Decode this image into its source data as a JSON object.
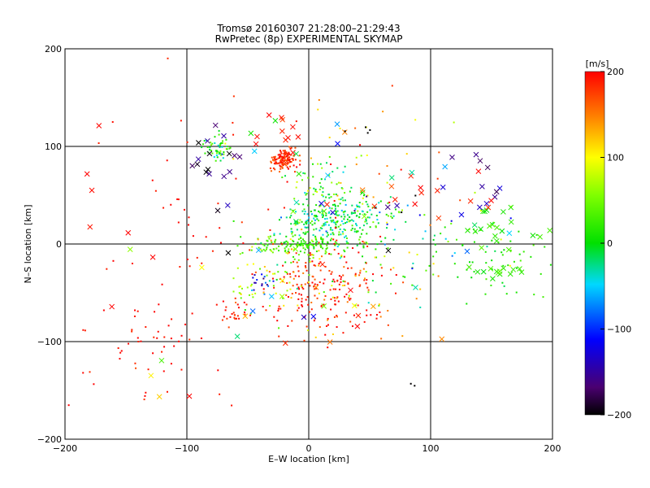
{
  "chart_data": {
    "type": "scatter",
    "title": "Tromsø 20160307 21:28:00–21:29:43",
    "subtitle": "RwPretec (8p) EXPERIMENTAL SKYMAP",
    "xlabel": "E–W location [km]",
    "ylabel": "N–S location [km]",
    "xlim": [
      -200,
      200
    ],
    "ylim": [
      -200,
      200
    ],
    "xticks": [
      -200,
      -100,
      0,
      100,
      200
    ],
    "yticks": [
      -200,
      -100,
      0,
      100,
      200
    ],
    "grid": "major lines at -100, 0, 100",
    "colorbar": {
      "label": "[m/s]",
      "range": [
        -200,
        200
      ],
      "ticks": [
        200,
        100,
        0,
        -100,
        -200
      ],
      "colormap": "black-purple-blue-cyan-green-yellow-red"
    },
    "clusters": [
      {
        "cx": -20,
        "cy": 87,
        "sx": 6,
        "sy": 5,
        "n": 130,
        "v": 185,
        "vs": 15,
        "marker": "dot"
      },
      {
        "cx": -75,
        "cy": 97,
        "sx": 6,
        "sy": 6,
        "n": 55,
        "v": 5,
        "vs": 40,
        "marker": "dot"
      },
      {
        "cx": -5,
        "cy": 0,
        "sx": 22,
        "sy": 5,
        "n": 150,
        "v": 25,
        "vs": 15,
        "marker": "dot"
      },
      {
        "cx": 15,
        "cy": 25,
        "sx": 18,
        "sy": 10,
        "n": 150,
        "v": -20,
        "vs": 25,
        "marker": "dot"
      },
      {
        "cx": 10,
        "cy": 45,
        "sx": 14,
        "sy": 22,
        "n": 90,
        "v": 10,
        "vs": 40,
        "marker": "dot"
      },
      {
        "cx": 40,
        "cy": 22,
        "sx": 20,
        "sy": 14,
        "n": 80,
        "v": 10,
        "vs": 30,
        "marker": "dot"
      },
      {
        "cx": 10,
        "cy": -45,
        "sx": 25,
        "sy": 25,
        "n": 180,
        "v": 190,
        "vs": 15,
        "marker": "dot"
      },
      {
        "cx": -20,
        "cy": -30,
        "sx": 18,
        "sy": 25,
        "n": 70,
        "v": 70,
        "vs": 50,
        "marker": "dot"
      },
      {
        "cx": 40,
        "cy": -40,
        "sx": 30,
        "sy": 25,
        "n": 50,
        "v": 120,
        "vs": 60,
        "marker": "dot"
      },
      {
        "cx": -60,
        "cy": -70,
        "sx": 8,
        "sy": 6,
        "n": 25,
        "v": 190,
        "vs": 15,
        "marker": "dot"
      },
      {
        "cx": -40,
        "cy": -40,
        "sx": 6,
        "sy": 6,
        "n": 18,
        "v": -110,
        "vs": 30,
        "marker": "dot"
      },
      {
        "cx": -55,
        "cy": -50,
        "sx": 6,
        "sy": 4,
        "n": 12,
        "v": 80,
        "vs": 20,
        "marker": "dot"
      },
      {
        "cx": -130,
        "cy": -95,
        "sx": 35,
        "sy": 30,
        "n": 60,
        "v": 195,
        "vs": 8,
        "marker": "dot"
      },
      {
        "cx": -80,
        "cy": 40,
        "sx": 45,
        "sy": 50,
        "n": 40,
        "v": 195,
        "vs": 8,
        "marker": "dot"
      },
      {
        "cx": 40,
        "cy": 90,
        "sx": 30,
        "sy": 30,
        "n": 30,
        "v": 130,
        "vs": 70,
        "marker": "dot"
      },
      {
        "cx": 85,
        "cy": 30,
        "sx": 30,
        "sy": 20,
        "n": 30,
        "v": -50,
        "vs": 80,
        "marker": "dot"
      },
      {
        "cx": 150,
        "cy": -15,
        "sx": 30,
        "sy": 20,
        "n": 60,
        "v": 15,
        "vs": 15,
        "marker": "dot"
      },
      {
        "cx": 60,
        "cy": -10,
        "sx": 40,
        "sy": 40,
        "n": 40,
        "v": 60,
        "vs": 100,
        "marker": "dot"
      },
      {
        "cx": 160,
        "cy": -28,
        "sx": 14,
        "sy": 3,
        "n": 14,
        "v": 15,
        "vs": 10,
        "marker": "x"
      },
      {
        "cx": 160,
        "cy": 18,
        "sx": 22,
        "sy": 12,
        "n": 22,
        "v": 15,
        "vs": 15,
        "marker": "x"
      },
      {
        "cx": 140,
        "cy": 75,
        "sx": 15,
        "sy": 20,
        "n": 10,
        "v": -150,
        "vs": 30,
        "marker": "x"
      },
      {
        "cx": 100,
        "cy": 45,
        "sx": 30,
        "sy": 15,
        "n": 14,
        "v": 190,
        "vs": 10,
        "marker": "x"
      },
      {
        "cx": -75,
        "cy": 85,
        "sx": 10,
        "sy": 20,
        "n": 18,
        "v": -180,
        "vs": 30,
        "marker": "x"
      },
      {
        "cx": -20,
        "cy": 120,
        "sx": 15,
        "sy": 20,
        "n": 12,
        "v": 190,
        "vs": 10,
        "marker": "x"
      },
      {
        "cx": -130,
        "cy": -70,
        "sx": 40,
        "sy": 60,
        "n": 10,
        "v": 170,
        "vs": 60,
        "marker": "x"
      },
      {
        "cx": -180,
        "cy": 70,
        "sx": 10,
        "sy": 20,
        "n": 4,
        "v": 190,
        "vs": 10,
        "marker": "x"
      },
      {
        "cx": -20,
        "cy": -60,
        "sx": 25,
        "sy": 45,
        "n": 14,
        "v": 50,
        "vs": 120,
        "marker": "x"
      },
      {
        "cx": 60,
        "cy": 40,
        "sx": 50,
        "sy": 40,
        "n": 14,
        "v": -120,
        "vs": 80,
        "marker": "x"
      },
      {
        "cx": 40,
        "cy": -70,
        "sx": 40,
        "sy": 50,
        "n": 10,
        "v": 160,
        "vs": 40,
        "marker": "x"
      },
      {
        "cx": 0,
        "cy": 60,
        "sx": 30,
        "sy": 40,
        "n": 12,
        "v": 0,
        "vs": 60,
        "marker": "x"
      },
      {
        "cx": 85,
        "cy": -145,
        "sx": 2,
        "sy": 2,
        "n": 2,
        "v": -200,
        "vs": 2,
        "marker": "dot"
      },
      {
        "cx": 40,
        "cy": 115,
        "sx": 5,
        "sy": 2,
        "n": 4,
        "v": -200,
        "vs": 2,
        "marker": "dot"
      }
    ]
  }
}
